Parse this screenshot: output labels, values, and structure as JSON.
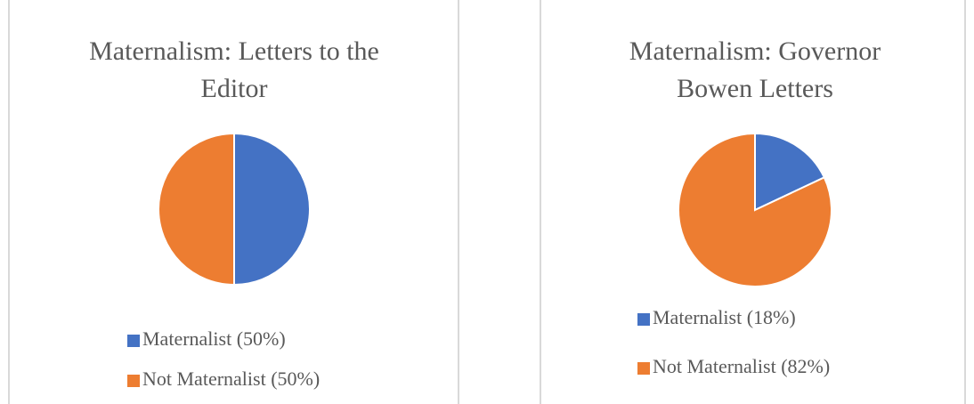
{
  "chart_data": [
    {
      "type": "pie",
      "title": "Maternalism: Letters to the Editor",
      "categories": [
        "Maternalist (50%)",
        "Not Maternalist (50%)"
      ],
      "values": [
        50,
        50
      ],
      "colors": [
        "#4472c4",
        "#ed7d31"
      ]
    },
    {
      "type": "pie",
      "title": "Maternalism: Governor Bowen Letters",
      "categories": [
        "Maternalist (18%)",
        "Not Maternalist (82%)"
      ],
      "values": [
        18,
        82
      ],
      "colors": [
        "#4472c4",
        "#ed7d31"
      ]
    }
  ]
}
